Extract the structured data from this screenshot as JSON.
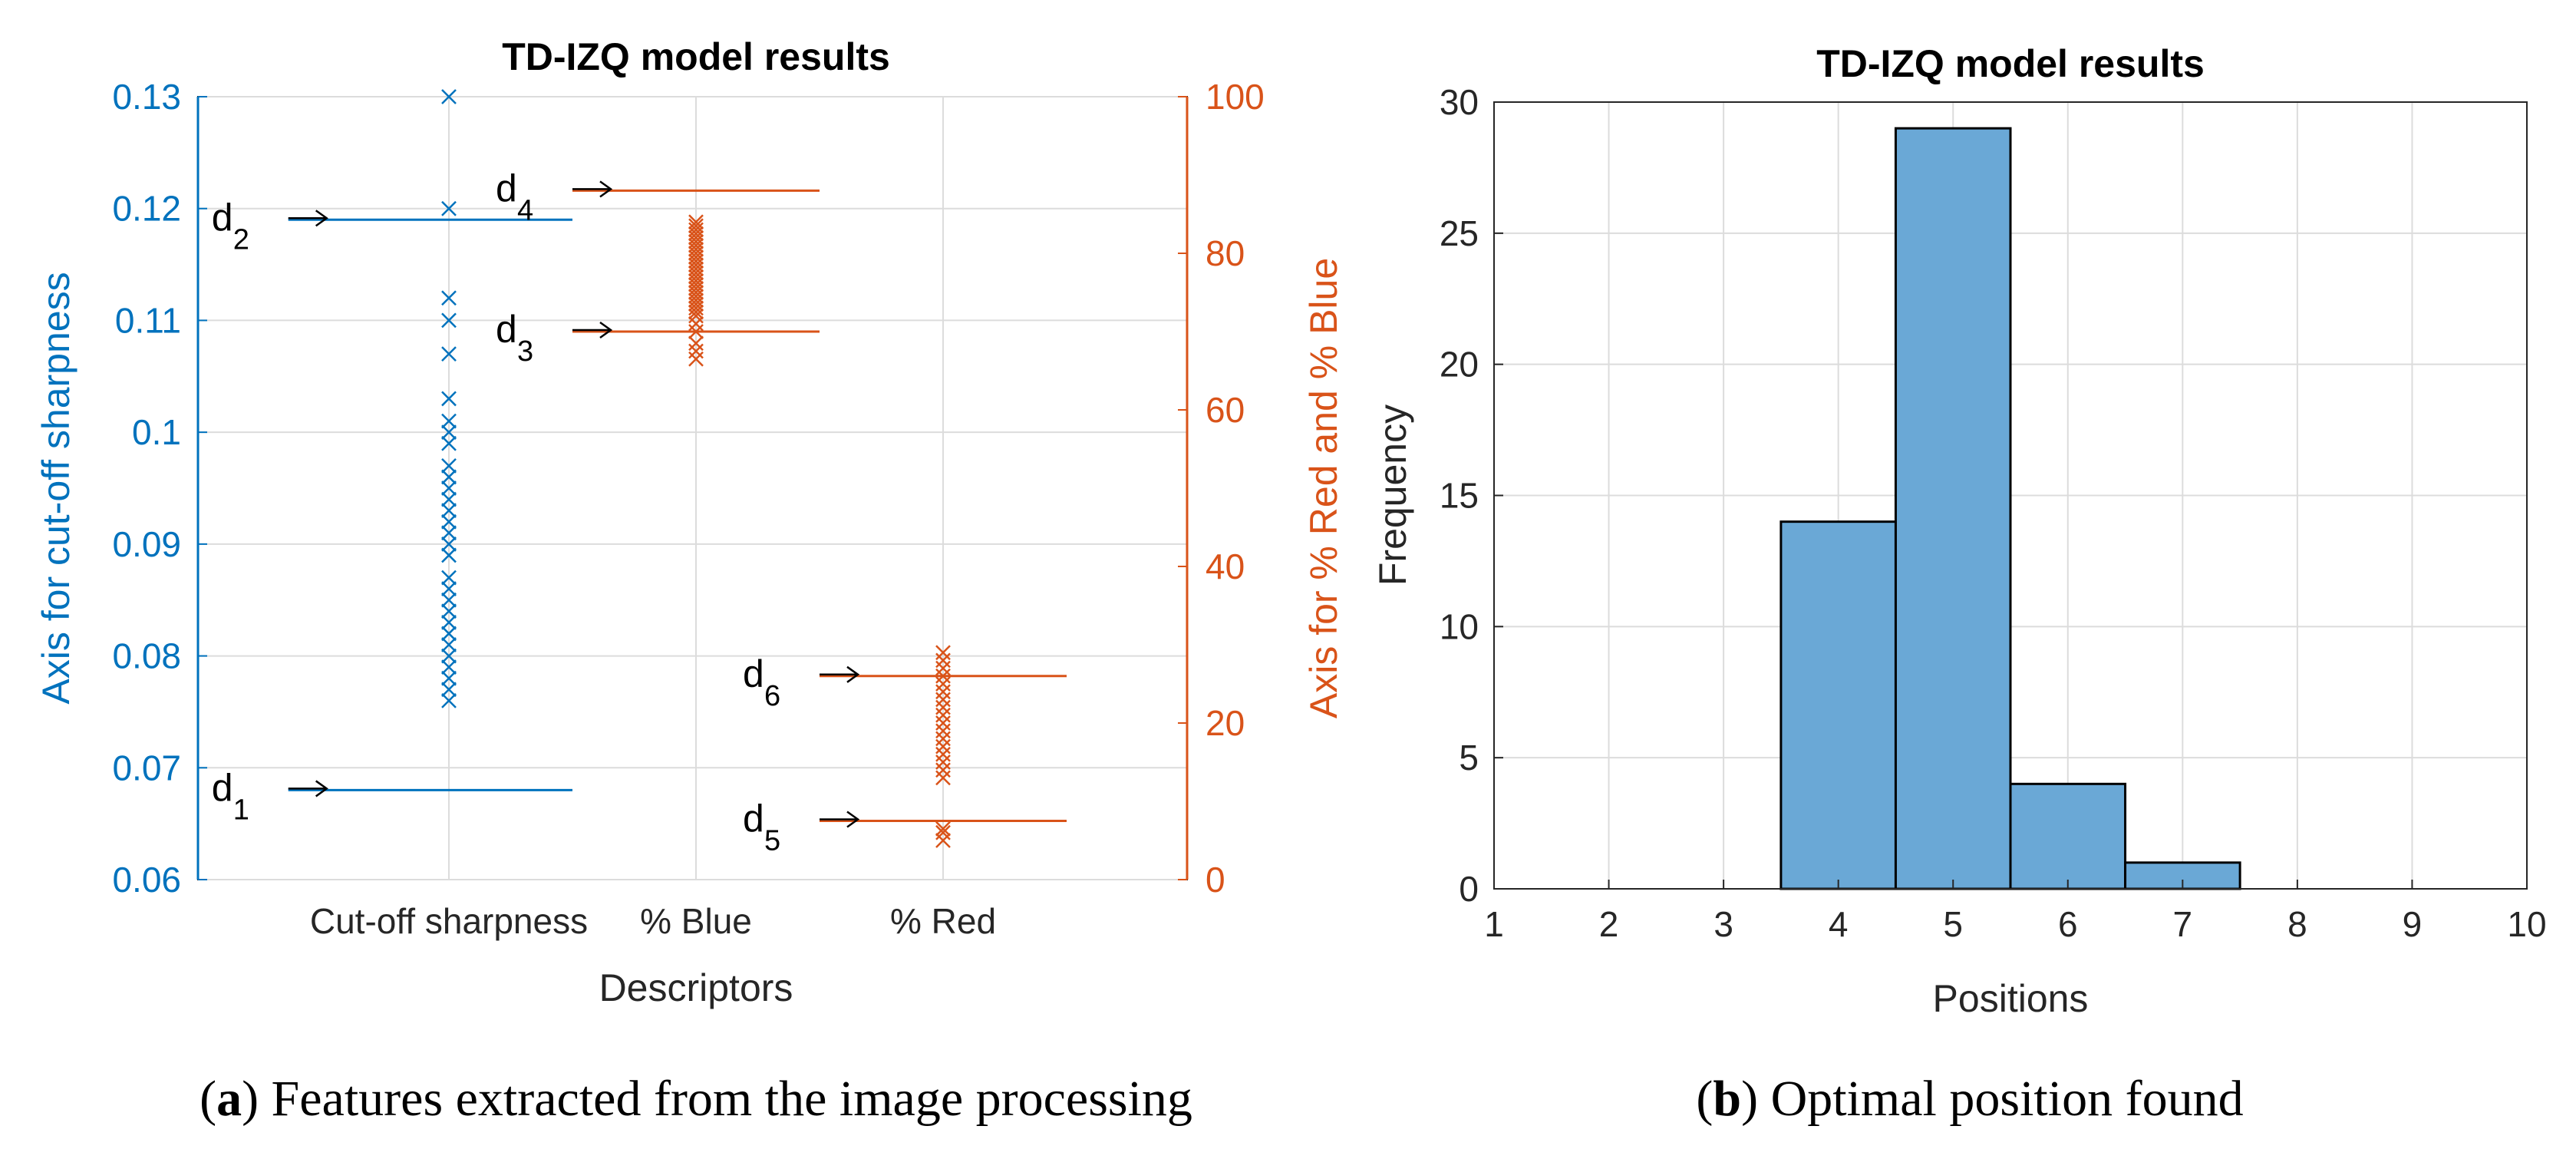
{
  "colors": {
    "blue": "#0072BD",
    "orange": "#D95319",
    "bar_fill": "#6AA8D6",
    "grid": "#dcdcdc"
  },
  "captions": {
    "a_letter": "a",
    "a_text": "Features extracted from the image processing",
    "b_letter": "b",
    "b_text": "Optimal position found"
  },
  "chart_data": [
    {
      "type": "scatter",
      "title": "TD-IZQ model results",
      "xlabel": "Descriptors",
      "ylabel_left": "Axis for cut-off sharpness",
      "ylabel_right": "Axis for % Red and % Blue",
      "categories": [
        "Cut-off sharpness",
        "% Blue",
        "% Red"
      ],
      "ylim_left": [
        0.06,
        0.13
      ],
      "ylim_right": [
        0,
        100
      ],
      "yticks_left": [
        "0.06",
        "0.07",
        "0.08",
        "0.09",
        "0.1",
        "0.11",
        "0.12",
        "0.13"
      ],
      "yticks_right": [
        "0",
        "20",
        "40",
        "60",
        "80",
        "100"
      ],
      "grid": true,
      "series": [
        {
          "axis": "left",
          "category": 0,
          "marker": "x",
          "values": [
            0.076,
            0.077,
            0.078,
            0.079,
            0.08,
            0.081,
            0.082,
            0.083,
            0.084,
            0.085,
            0.086,
            0.087,
            0.089,
            0.09,
            0.091,
            0.092,
            0.093,
            0.094,
            0.095,
            0.096,
            0.097,
            0.099,
            0.1,
            0.101,
            0.103,
            0.107,
            0.11,
            0.112,
            0.12,
            0.13
          ]
        },
        {
          "axis": "right",
          "category": 1,
          "marker": "x",
          "values": [
            66.5,
            67.5,
            68.5,
            70,
            71,
            72,
            72.5,
            73,
            73.5,
            74,
            74.5,
            75,
            75.5,
            76,
            76.5,
            77,
            77.5,
            78,
            78.5,
            79,
            79.5,
            80,
            80.5,
            81,
            81.5,
            82,
            82.5,
            83,
            83.5,
            84
          ]
        },
        {
          "axis": "right",
          "category": 2,
          "marker": "x",
          "values": [
            5,
            6,
            6.5,
            13,
            14,
            15,
            16,
            17,
            18,
            19,
            20,
            21,
            22,
            23,
            24,
            25,
            26,
            27,
            28,
            29
          ]
        }
      ],
      "thresholds": [
        {
          "label": "d",
          "sub": "1",
          "axis": "left",
          "value": 0.068,
          "from": -0.65,
          "to": 0.5
        },
        {
          "label": "d",
          "sub": "2",
          "axis": "left",
          "value": 0.119,
          "from": -0.65,
          "to": 0.5
        },
        {
          "label": "d",
          "sub": "3",
          "axis": "right",
          "value": 70,
          "from": 0.5,
          "to": 1.5
        },
        {
          "label": "d",
          "sub": "4",
          "axis": "right",
          "value": 88,
          "from": 0.5,
          "to": 1.5
        },
        {
          "label": "d",
          "sub": "5",
          "axis": "right",
          "value": 7.5,
          "from": 1.5,
          "to": 2.5
        },
        {
          "label": "d",
          "sub": "6",
          "axis": "right",
          "value": 26,
          "from": 1.5,
          "to": 2.5
        }
      ]
    },
    {
      "type": "bar",
      "title": "TD-IZQ model results",
      "xlabel": "Positions",
      "ylabel": "Frequency",
      "xlim": [
        1,
        10
      ],
      "ylim": [
        0,
        30
      ],
      "xticks": [
        "1",
        "2",
        "3",
        "4",
        "5",
        "6",
        "7",
        "8",
        "9",
        "10"
      ],
      "yticks": [
        "0",
        "5",
        "10",
        "15",
        "20",
        "25",
        "30"
      ],
      "grid": true,
      "categories": [
        "4",
        "5",
        "6",
        "7"
      ],
      "x": [
        4,
        5,
        6,
        7
      ],
      "values": [
        14,
        29,
        4,
        1
      ]
    }
  ]
}
